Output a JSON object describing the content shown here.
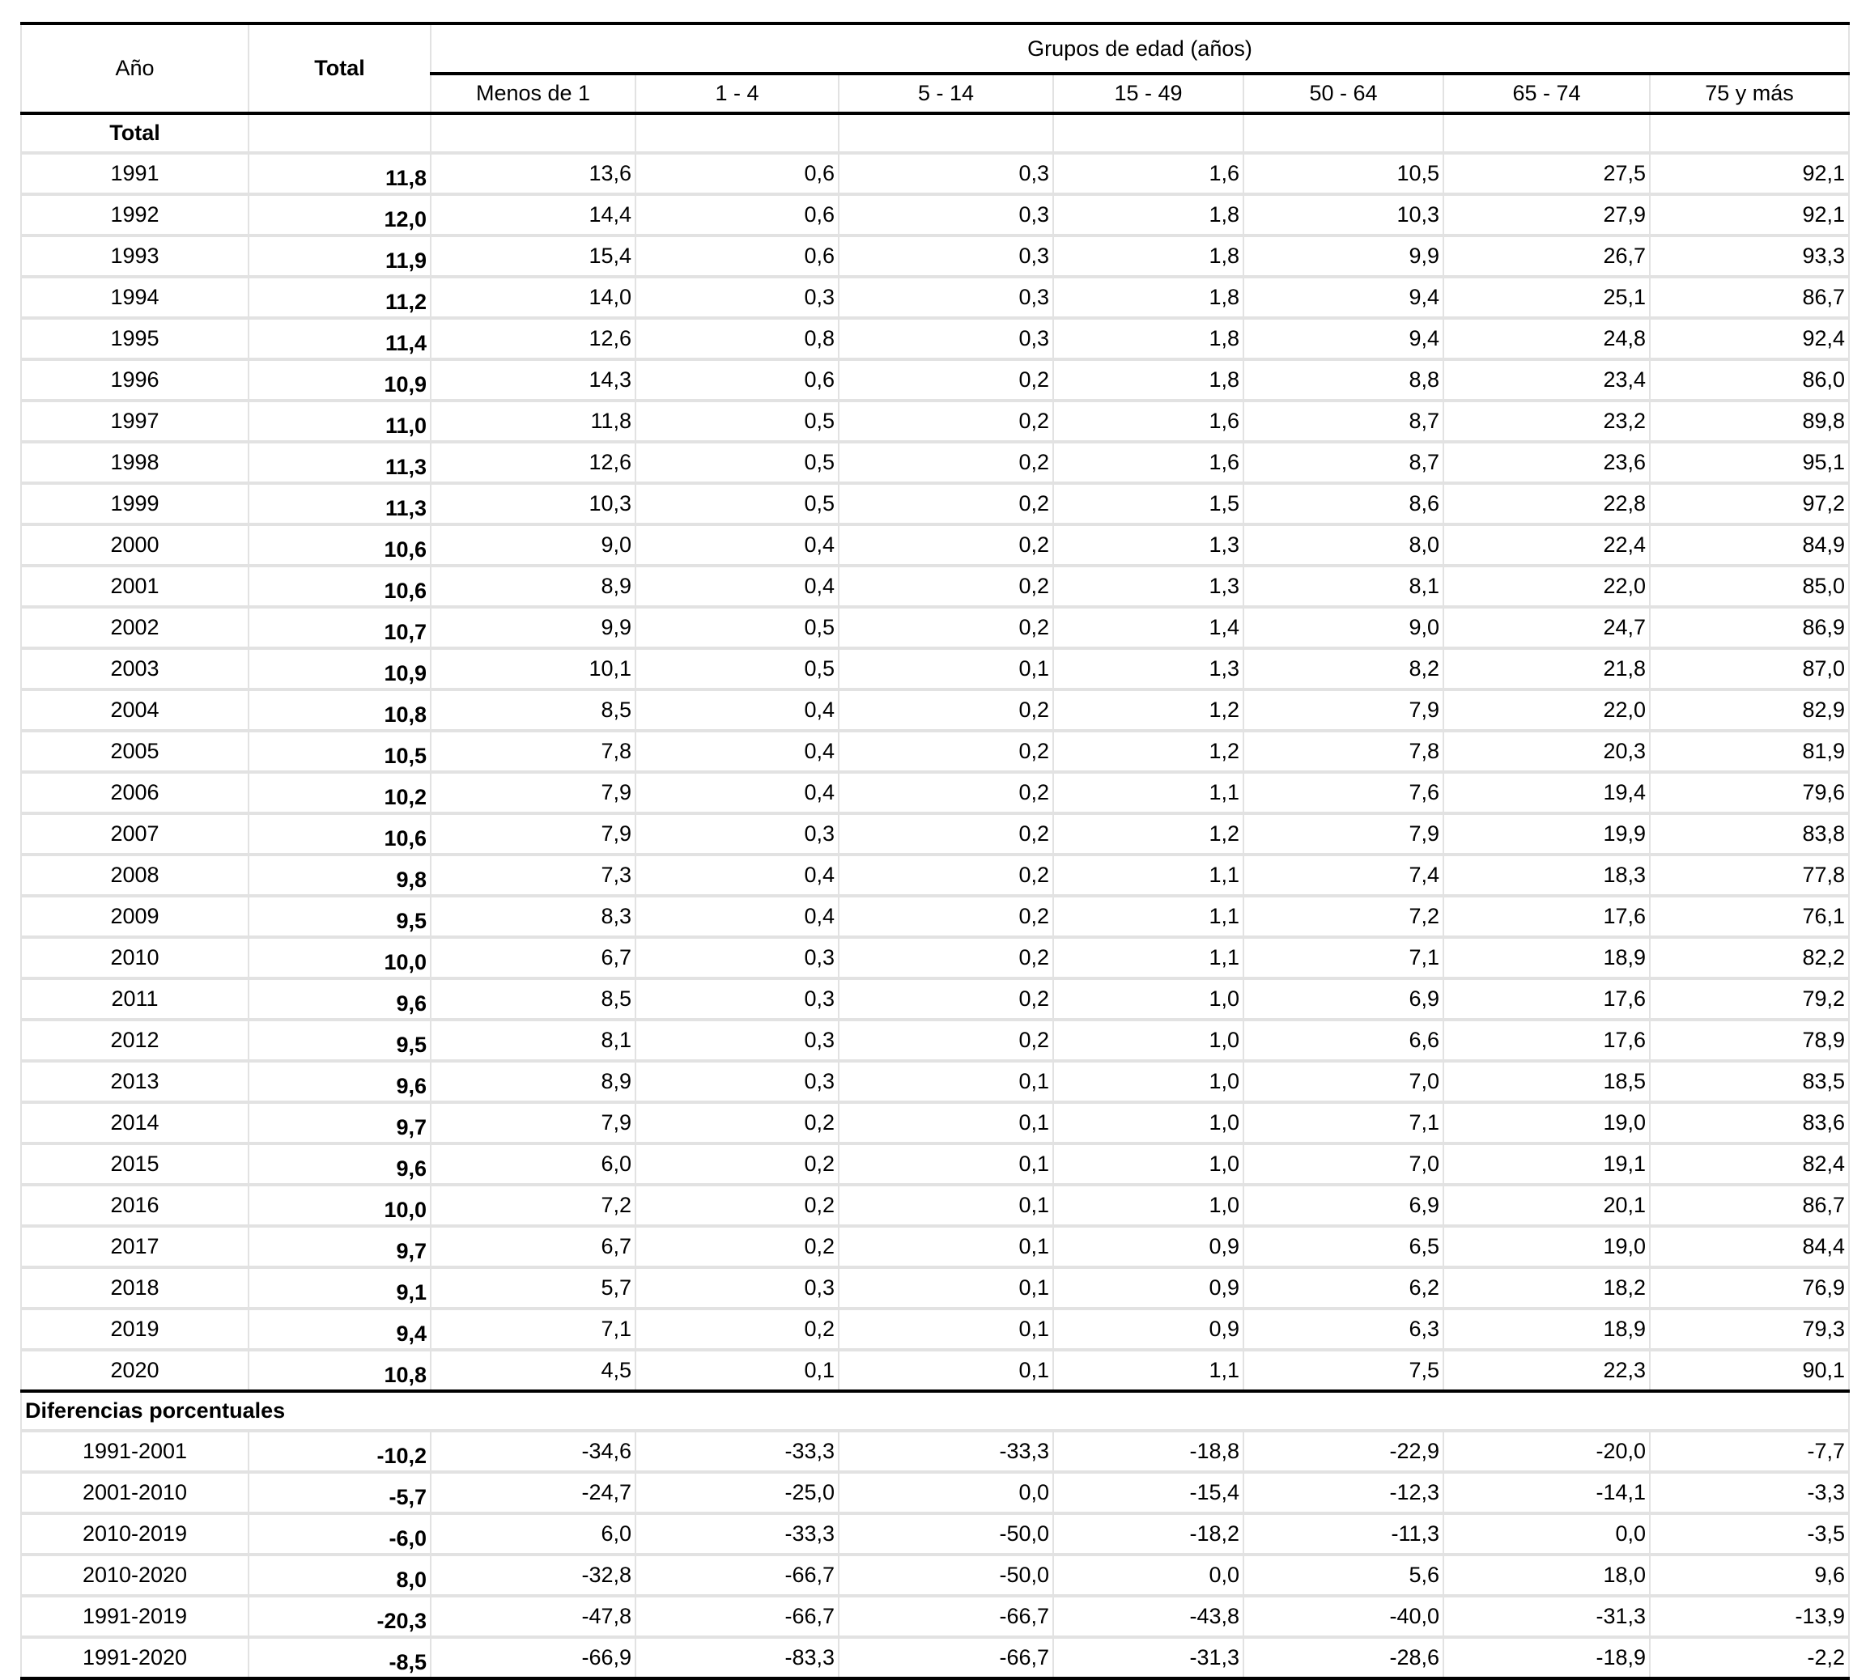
{
  "header": {
    "year_label": "Año",
    "total_label": "Total",
    "group_label": "Grupos de edad (años)",
    "age_groups": [
      "Menos de 1",
      "1 - 4",
      "5 - 14",
      "15 - 49",
      "50 - 64",
      "65 - 74",
      "75 y más"
    ]
  },
  "sections": {
    "total_label": "Total",
    "diff_label": "Diferencias porcentuales"
  },
  "rows": [
    {
      "year": "1991",
      "total": "11,8",
      "values": [
        "13,6",
        "0,6",
        "0,3",
        "1,6",
        "10,5",
        "27,5",
        "92,1"
      ]
    },
    {
      "year": "1992",
      "total": "12,0",
      "values": [
        "14,4",
        "0,6",
        "0,3",
        "1,8",
        "10,3",
        "27,9",
        "92,1"
      ]
    },
    {
      "year": "1993",
      "total": "11,9",
      "values": [
        "15,4",
        "0,6",
        "0,3",
        "1,8",
        "9,9",
        "26,7",
        "93,3"
      ]
    },
    {
      "year": "1994",
      "total": "11,2",
      "values": [
        "14,0",
        "0,3",
        "0,3",
        "1,8",
        "9,4",
        "25,1",
        "86,7"
      ]
    },
    {
      "year": "1995",
      "total": "11,4",
      "values": [
        "12,6",
        "0,8",
        "0,3",
        "1,8",
        "9,4",
        "24,8",
        "92,4"
      ]
    },
    {
      "year": "1996",
      "total": "10,9",
      "values": [
        "14,3",
        "0,6",
        "0,2",
        "1,8",
        "8,8",
        "23,4",
        "86,0"
      ]
    },
    {
      "year": "1997",
      "total": "11,0",
      "values": [
        "11,8",
        "0,5",
        "0,2",
        "1,6",
        "8,7",
        "23,2",
        "89,8"
      ]
    },
    {
      "year": "1998",
      "total": "11,3",
      "values": [
        "12,6",
        "0,5",
        "0,2",
        "1,6",
        "8,7",
        "23,6",
        "95,1"
      ]
    },
    {
      "year": "1999",
      "total": "11,3",
      "values": [
        "10,3",
        "0,5",
        "0,2",
        "1,5",
        "8,6",
        "22,8",
        "97,2"
      ]
    },
    {
      "year": "2000",
      "total": "10,6",
      "values": [
        "9,0",
        "0,4",
        "0,2",
        "1,3",
        "8,0",
        "22,4",
        "84,9"
      ]
    },
    {
      "year": "2001",
      "total": "10,6",
      "values": [
        "8,9",
        "0,4",
        "0,2",
        "1,3",
        "8,1",
        "22,0",
        "85,0"
      ]
    },
    {
      "year": "2002",
      "total": "10,7",
      "values": [
        "9,9",
        "0,5",
        "0,2",
        "1,4",
        "9,0",
        "24,7",
        "86,9"
      ]
    },
    {
      "year": "2003",
      "total": "10,9",
      "values": [
        "10,1",
        "0,5",
        "0,1",
        "1,3",
        "8,2",
        "21,8",
        "87,0"
      ]
    },
    {
      "year": "2004",
      "total": "10,8",
      "values": [
        "8,5",
        "0,4",
        "0,2",
        "1,2",
        "7,9",
        "22,0",
        "82,9"
      ]
    },
    {
      "year": "2005",
      "total": "10,5",
      "values": [
        "7,8",
        "0,4",
        "0,2",
        "1,2",
        "7,8",
        "20,3",
        "81,9"
      ]
    },
    {
      "year": "2006",
      "total": "10,2",
      "values": [
        "7,9",
        "0,4",
        "0,2",
        "1,1",
        "7,6",
        "19,4",
        "79,6"
      ]
    },
    {
      "year": "2007",
      "total": "10,6",
      "values": [
        "7,9",
        "0,3",
        "0,2",
        "1,2",
        "7,9",
        "19,9",
        "83,8"
      ]
    },
    {
      "year": "2008",
      "total": "9,8",
      "values": [
        "7,3",
        "0,4",
        "0,2",
        "1,1",
        "7,4",
        "18,3",
        "77,8"
      ]
    },
    {
      "year": "2009",
      "total": "9,5",
      "values": [
        "8,3",
        "0,4",
        "0,2",
        "1,1",
        "7,2",
        "17,6",
        "76,1"
      ]
    },
    {
      "year": "2010",
      "total": "10,0",
      "values": [
        "6,7",
        "0,3",
        "0,2",
        "1,1",
        "7,1",
        "18,9",
        "82,2"
      ]
    },
    {
      "year": "2011",
      "total": "9,6",
      "values": [
        "8,5",
        "0,3",
        "0,2",
        "1,0",
        "6,9",
        "17,6",
        "79,2"
      ]
    },
    {
      "year": "2012",
      "total": "9,5",
      "values": [
        "8,1",
        "0,3",
        "0,2",
        "1,0",
        "6,6",
        "17,6",
        "78,9"
      ]
    },
    {
      "year": "2013",
      "total": "9,6",
      "values": [
        "8,9",
        "0,3",
        "0,1",
        "1,0",
        "7,0",
        "18,5",
        "83,5"
      ]
    },
    {
      "year": "2014",
      "total": "9,7",
      "values": [
        "7,9",
        "0,2",
        "0,1",
        "1,0",
        "7,1",
        "19,0",
        "83,6"
      ]
    },
    {
      "year": "2015",
      "total": "9,6",
      "values": [
        "6,0",
        "0,2",
        "0,1",
        "1,0",
        "7,0",
        "19,1",
        "82,4"
      ]
    },
    {
      "year": "2016",
      "total": "10,0",
      "values": [
        "7,2",
        "0,2",
        "0,1",
        "1,0",
        "6,9",
        "20,1",
        "86,7"
      ]
    },
    {
      "year": "2017",
      "total": "9,7",
      "values": [
        "6,7",
        "0,2",
        "0,1",
        "0,9",
        "6,5",
        "19,0",
        "84,4"
      ]
    },
    {
      "year": "2018",
      "total": "9,1",
      "values": [
        "5,7",
        "0,3",
        "0,1",
        "0,9",
        "6,2",
        "18,2",
        "76,9"
      ]
    },
    {
      "year": "2019",
      "total": "9,4",
      "values": [
        "7,1",
        "0,2",
        "0,1",
        "0,9",
        "6,3",
        "18,9",
        "79,3"
      ]
    },
    {
      "year": "2020",
      "total": "10,8",
      "values": [
        "4,5",
        "0,1",
        "0,1",
        "1,1",
        "7,5",
        "22,3",
        "90,1"
      ]
    }
  ],
  "differences": [
    {
      "period": "1991-2001",
      "total": "-10,2",
      "values": [
        "-34,6",
        "-33,3",
        "-33,3",
        "-18,8",
        "-22,9",
        "-20,0",
        "-7,7"
      ]
    },
    {
      "period": "2001-2010",
      "total": "-5,7",
      "values": [
        "-24,7",
        "-25,0",
        "0,0",
        "-15,4",
        "-12,3",
        "-14,1",
        "-3,3"
      ]
    },
    {
      "period": "2010-2019",
      "total": "-6,0",
      "values": [
        "6,0",
        "-33,3",
        "-50,0",
        "-18,2",
        "-11,3",
        "0,0",
        "-3,5"
      ]
    },
    {
      "period": "2010-2020",
      "total": "8,0",
      "values": [
        "-32,8",
        "-66,7",
        "-50,0",
        "0,0",
        "5,6",
        "18,0",
        "9,6"
      ]
    },
    {
      "period": "1991-2019",
      "total": "-20,3",
      "values": [
        "-47,8",
        "-66,7",
        "-66,7",
        "-43,8",
        "-40,0",
        "-31,3",
        "-13,9"
      ]
    },
    {
      "period": "1991-2020",
      "total": "-8,5",
      "values": [
        "-66,9",
        "-83,3",
        "-66,7",
        "-31,3",
        "-28,6",
        "-18,9",
        "-2,2"
      ]
    }
  ]
}
